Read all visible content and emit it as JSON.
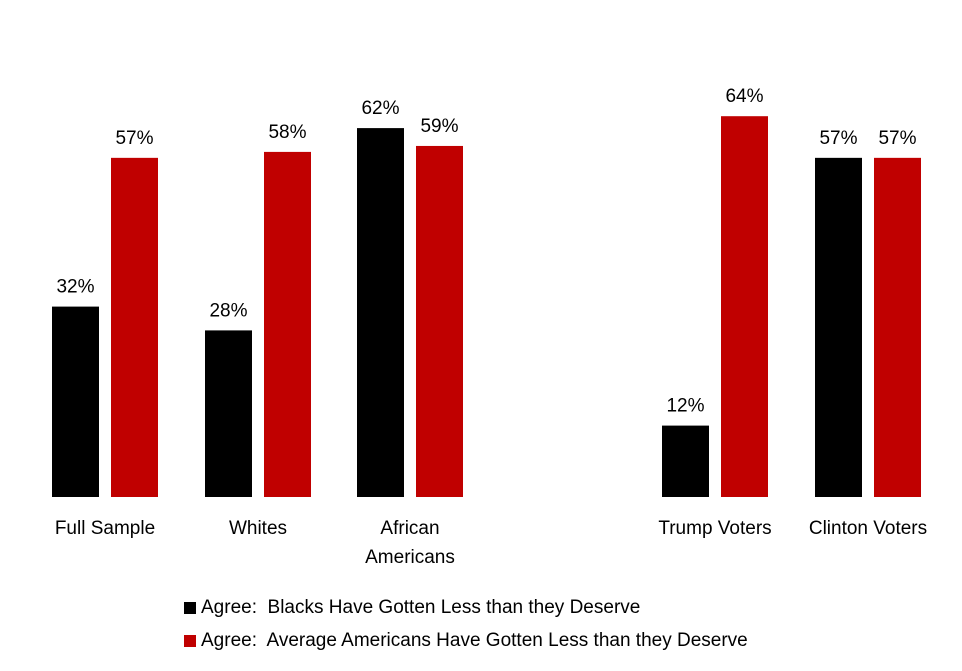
{
  "chart_data": {
    "type": "bar",
    "title": "",
    "xlabel": "",
    "ylabel": "",
    "ylim": [
      0,
      100
    ],
    "categories": [
      "Full Sample",
      "Whites",
      "African Americans",
      "Trump Voters",
      "Clinton Voters"
    ],
    "category_lines": [
      [
        "Full Sample"
      ],
      [
        "Whites"
      ],
      [
        "African",
        "Americans"
      ],
      [
        "Trump Voters"
      ],
      [
        "Clinton Voters"
      ]
    ],
    "series": [
      {
        "name": "Agree:  Blacks Have Gotten Less than they Deserve",
        "color": "#000000",
        "values": [
          32,
          28,
          62,
          12,
          57
        ],
        "labels": [
          "32%",
          "28%",
          "62%",
          "12%",
          "57%"
        ]
      },
      {
        "name": "Agree:  Average Americans Have Gotten Less than they Deserve",
        "color": "#c00000",
        "values": [
          57,
          58,
          59,
          64,
          57
        ],
        "labels": [
          "57%",
          "58%",
          "59%",
          "64%",
          "57%"
        ]
      }
    ],
    "grid": false,
    "legend_position": "bottom"
  }
}
